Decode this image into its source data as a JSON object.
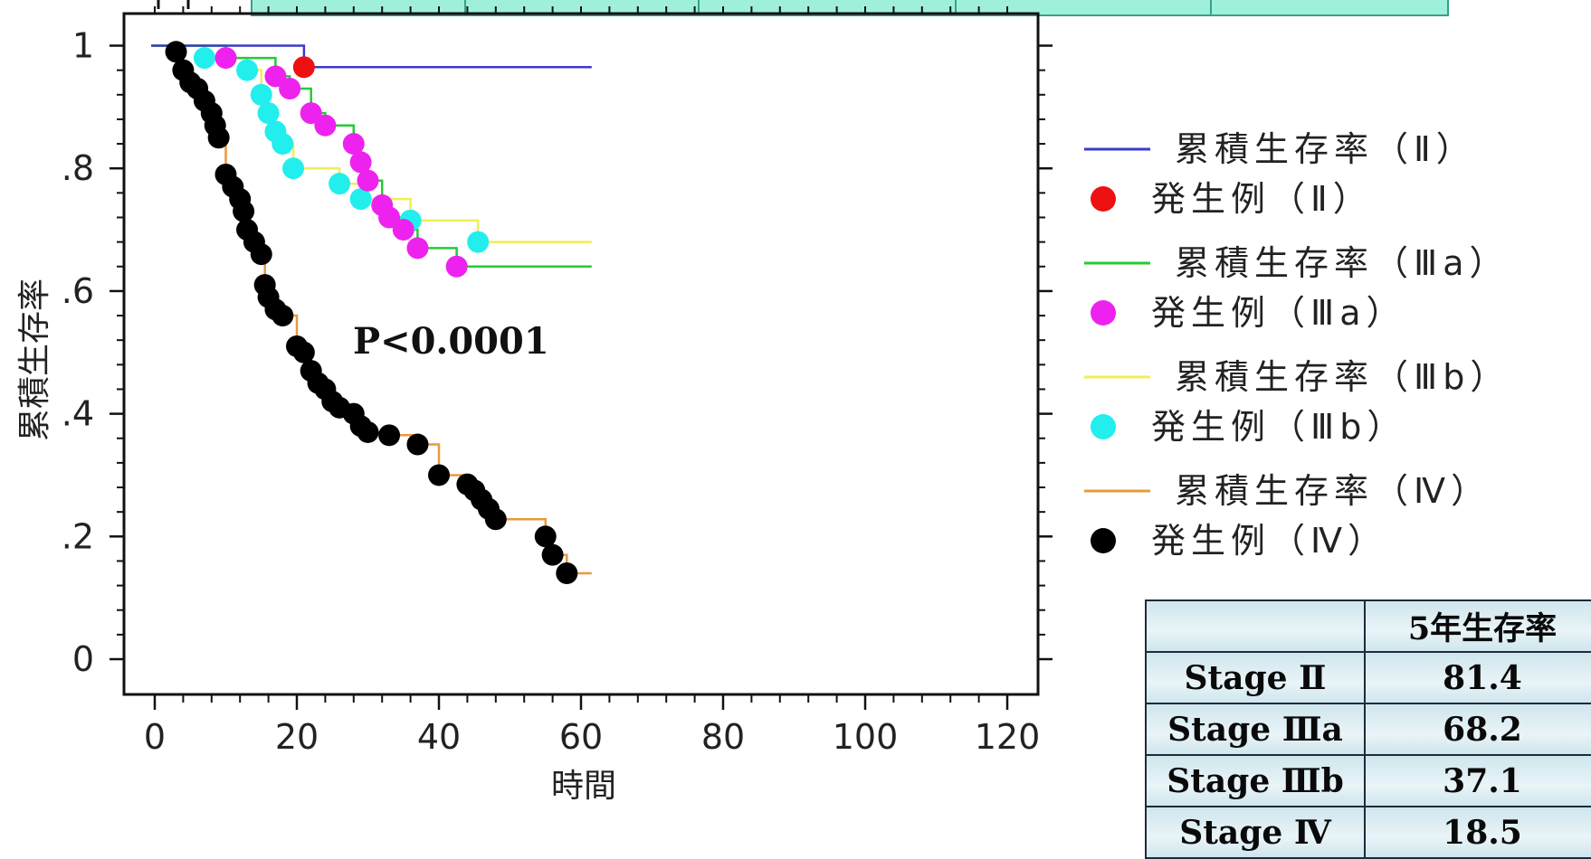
{
  "chart_data": {
    "type": "line",
    "subtype": "kaplan-meier",
    "title": "",
    "xlabel": "時間",
    "ylabel": "累積生存率",
    "xlim": [
      -5,
      125
    ],
    "ylim": [
      -0.06,
      1.06
    ],
    "x_ticks": [
      0,
      20,
      40,
      60,
      80,
      100,
      120
    ],
    "x_tick_labels": [
      "0",
      "20",
      "40",
      "60",
      "80",
      "100",
      "120"
    ],
    "y_ticks": [
      0,
      0.2,
      0.4,
      0.6,
      0.8,
      1
    ],
    "y_tick_labels": [
      "0",
      ".2",
      ".4",
      ".6",
      ".8",
      "1"
    ],
    "annotation": "P<0.0001",
    "grid": false,
    "legend_position": "right",
    "series": [
      {
        "name": "累積生存率（Ⅱ）",
        "events_name": "発生例（Ⅱ）",
        "line_color": "#3a3acc",
        "event_color": "#ee1111",
        "curve": [
          [
            -0.5,
            1.0
          ],
          [
            21,
            1.0
          ],
          [
            21,
            0.965
          ],
          [
            61.5,
            0.965
          ]
        ],
        "events": [
          [
            21,
            0.965
          ]
        ]
      },
      {
        "name": "累積生存率（Ⅲa）",
        "events_name": "発生例（Ⅲa）",
        "line_color": "#22cc33",
        "event_color": "#ee22ee",
        "curve": [
          [
            -0.5,
            1.0
          ],
          [
            10,
            1.0
          ],
          [
            10,
            0.98
          ],
          [
            17,
            0.98
          ],
          [
            17,
            0.95
          ],
          [
            19,
            0.95
          ],
          [
            19,
            0.93
          ],
          [
            22,
            0.93
          ],
          [
            22,
            0.89
          ],
          [
            24,
            0.89
          ],
          [
            24,
            0.87
          ],
          [
            28,
            0.87
          ],
          [
            28,
            0.84
          ],
          [
            29,
            0.84
          ],
          [
            29,
            0.81
          ],
          [
            30,
            0.81
          ],
          [
            30,
            0.78
          ],
          [
            32,
            0.78
          ],
          [
            32,
            0.74
          ],
          [
            33,
            0.74
          ],
          [
            33,
            0.72
          ],
          [
            35,
            0.72
          ],
          [
            35,
            0.7
          ],
          [
            37,
            0.7
          ],
          [
            37,
            0.67
          ],
          [
            42.5,
            0.67
          ],
          [
            42.5,
            0.64
          ],
          [
            61.5,
            0.64
          ]
        ],
        "events": [
          [
            10,
            0.98
          ],
          [
            17,
            0.95
          ],
          [
            19,
            0.93
          ],
          [
            22,
            0.89
          ],
          [
            24,
            0.87
          ],
          [
            28,
            0.84
          ],
          [
            29,
            0.81
          ],
          [
            30,
            0.78
          ],
          [
            32,
            0.74
          ],
          [
            33,
            0.72
          ],
          [
            35,
            0.7
          ],
          [
            37,
            0.67
          ],
          [
            42.5,
            0.64
          ]
        ]
      },
      {
        "name": "累積生存率（Ⅲb）",
        "events_name": "発生例（Ⅲb）",
        "line_color": "#f0ee55",
        "event_color": "#22eeee",
        "curve": [
          [
            -0.5,
            1.0
          ],
          [
            7,
            1.0
          ],
          [
            7,
            0.98
          ],
          [
            13,
            0.98
          ],
          [
            13,
            0.96
          ],
          [
            15,
            0.96
          ],
          [
            15,
            0.92
          ],
          [
            16,
            0.92
          ],
          [
            16,
            0.89
          ],
          [
            17,
            0.89
          ],
          [
            17,
            0.86
          ],
          [
            18,
            0.86
          ],
          [
            18,
            0.84
          ],
          [
            19.5,
            0.84
          ],
          [
            19.5,
            0.8
          ],
          [
            26,
            0.8
          ],
          [
            26,
            0.775
          ],
          [
            29,
            0.775
          ],
          [
            29,
            0.75
          ],
          [
            36,
            0.75
          ],
          [
            36,
            0.715
          ],
          [
            45.5,
            0.715
          ],
          [
            45.5,
            0.68
          ],
          [
            61.5,
            0.68
          ]
        ],
        "events": [
          [
            7,
            0.98
          ],
          [
            13,
            0.96
          ],
          [
            15,
            0.92
          ],
          [
            16,
            0.89
          ],
          [
            17,
            0.86
          ],
          [
            18,
            0.84
          ],
          [
            19.5,
            0.8
          ],
          [
            26,
            0.775
          ],
          [
            29,
            0.75
          ],
          [
            36,
            0.715
          ],
          [
            45.5,
            0.68
          ]
        ]
      },
      {
        "name": "累積生存率（Ⅳ）",
        "events_name": "発生例（Ⅳ）",
        "line_color": "#e89a3a",
        "event_color": "#000000",
        "curve": [
          [
            -0.5,
            1.0
          ],
          [
            3,
            1.0
          ],
          [
            3,
            0.99
          ],
          [
            4,
            0.99
          ],
          [
            4,
            0.96
          ],
          [
            5,
            0.96
          ],
          [
            5,
            0.94
          ],
          [
            6,
            0.94
          ],
          [
            6,
            0.93
          ],
          [
            7,
            0.93
          ],
          [
            7,
            0.91
          ],
          [
            8,
            0.91
          ],
          [
            8,
            0.89
          ],
          [
            8.5,
            0.89
          ],
          [
            8.5,
            0.87
          ],
          [
            9,
            0.87
          ],
          [
            9,
            0.85
          ],
          [
            10,
            0.85
          ],
          [
            10,
            0.79
          ],
          [
            11,
            0.79
          ],
          [
            11,
            0.77
          ],
          [
            12,
            0.77
          ],
          [
            12,
            0.75
          ],
          [
            12.5,
            0.75
          ],
          [
            12.5,
            0.73
          ],
          [
            13,
            0.73
          ],
          [
            13,
            0.7
          ],
          [
            14,
            0.7
          ],
          [
            14,
            0.68
          ],
          [
            15,
            0.68
          ],
          [
            15,
            0.66
          ],
          [
            15.5,
            0.66
          ],
          [
            15.5,
            0.61
          ],
          [
            16,
            0.61
          ],
          [
            16,
            0.59
          ],
          [
            17,
            0.59
          ],
          [
            17,
            0.57
          ],
          [
            18,
            0.57
          ],
          [
            18,
            0.56
          ],
          [
            20,
            0.56
          ],
          [
            20,
            0.51
          ],
          [
            21,
            0.51
          ],
          [
            21,
            0.5
          ],
          [
            22,
            0.5
          ],
          [
            22,
            0.47
          ],
          [
            23,
            0.47
          ],
          [
            23,
            0.45
          ],
          [
            24,
            0.45
          ],
          [
            24,
            0.44
          ],
          [
            25,
            0.44
          ],
          [
            25,
            0.42
          ],
          [
            26,
            0.42
          ],
          [
            26,
            0.41
          ],
          [
            28,
            0.41
          ],
          [
            28,
            0.4
          ],
          [
            29,
            0.4
          ],
          [
            29,
            0.38
          ],
          [
            30,
            0.38
          ],
          [
            30,
            0.37
          ],
          [
            33,
            0.37
          ],
          [
            33,
            0.365
          ],
          [
            37,
            0.365
          ],
          [
            37,
            0.35
          ],
          [
            40,
            0.35
          ],
          [
            40,
            0.3
          ],
          [
            44,
            0.3
          ],
          [
            44,
            0.285
          ],
          [
            45,
            0.285
          ],
          [
            45,
            0.275
          ],
          [
            46,
            0.275
          ],
          [
            46,
            0.26
          ],
          [
            47,
            0.26
          ],
          [
            47,
            0.245
          ],
          [
            48,
            0.245
          ],
          [
            48,
            0.228
          ],
          [
            55,
            0.228
          ],
          [
            55,
            0.2
          ],
          [
            56,
            0.2
          ],
          [
            56,
            0.17
          ],
          [
            58,
            0.17
          ],
          [
            58,
            0.14
          ],
          [
            61.5,
            0.14
          ]
        ],
        "events": [
          [
            3,
            0.99
          ],
          [
            4,
            0.96
          ],
          [
            5,
            0.94
          ],
          [
            6,
            0.93
          ],
          [
            7,
            0.91
          ],
          [
            8,
            0.89
          ],
          [
            8.5,
            0.87
          ],
          [
            9,
            0.85
          ],
          [
            10,
            0.79
          ],
          [
            11,
            0.77
          ],
          [
            12,
            0.75
          ],
          [
            12.5,
            0.73
          ],
          [
            13,
            0.7
          ],
          [
            14,
            0.68
          ],
          [
            15,
            0.66
          ],
          [
            15.5,
            0.61
          ],
          [
            16,
            0.59
          ],
          [
            17,
            0.57
          ],
          [
            18,
            0.56
          ],
          [
            20,
            0.51
          ],
          [
            21,
            0.5
          ],
          [
            22,
            0.47
          ],
          [
            23,
            0.45
          ],
          [
            24,
            0.44
          ],
          [
            25,
            0.42
          ],
          [
            26,
            0.41
          ],
          [
            28,
            0.4
          ],
          [
            29,
            0.38
          ],
          [
            30,
            0.37
          ],
          [
            33,
            0.365
          ],
          [
            37,
            0.35
          ],
          [
            40,
            0.3
          ],
          [
            44,
            0.285
          ],
          [
            45,
            0.275
          ],
          [
            46,
            0.26
          ],
          [
            47,
            0.245
          ],
          [
            48,
            0.228
          ],
          [
            55,
            0.2
          ],
          [
            56,
            0.17
          ],
          [
            58,
            0.14
          ]
        ]
      }
    ]
  },
  "table": {
    "header": [
      "",
      "5年生存率"
    ],
    "rows": [
      [
        "Stage Ⅱ",
        "81.4"
      ],
      [
        "Stage Ⅲa",
        "68.2"
      ],
      [
        "Stage Ⅲb",
        "37.1"
      ],
      [
        "Stage Ⅳ",
        "18.5"
      ]
    ]
  },
  "colors": {
    "top_band_fill": "#9ff0da",
    "top_band_border": "#3aa08a",
    "axis": "#111111",
    "tick_label": "#222222",
    "annotation": "#111111"
  }
}
